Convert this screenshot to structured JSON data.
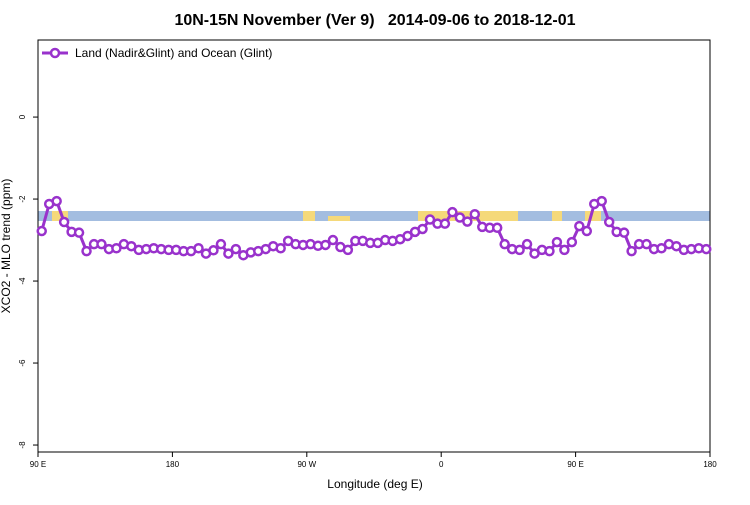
{
  "chart_data": {
    "type": "line",
    "title": "10N-15N November (Ver 9)   2014-09-06 to 2018-12-01",
    "xlabel": "Longitude (deg E)",
    "ylabel": "XCO2 - MLO trend (ppm)",
    "xlim": [
      90,
      540
    ],
    "ylim": [
      -8.17,
      1.88
    ],
    "xticks": [
      {
        "value": 90,
        "label": "90 E"
      },
      {
        "value": 180,
        "label": "180"
      },
      {
        "value": 270,
        "label": "90 W"
      },
      {
        "value": 360,
        "label": "0"
      },
      {
        "value": 450,
        "label": "90 E"
      },
      {
        "value": 540,
        "label": "180"
      }
    ],
    "yticks": [
      0,
      -2,
      -4,
      -6,
      -8
    ],
    "legend": "top-left",
    "x": [
      92.5,
      97.5,
      102.5,
      107.5,
      112.5,
      117.5,
      122.5,
      127.5,
      132.5,
      137.5,
      142.5,
      147.5,
      152.5,
      157.5,
      162.5,
      167.5,
      172.5,
      177.5,
      182.5,
      187.5,
      192.5,
      197.5,
      202.5,
      207.5,
      212.5,
      217.5,
      222.5,
      227.5,
      232.5,
      237.5,
      242.5,
      247.5,
      252.5,
      257.5,
      262.5,
      267.5,
      272.5,
      277.5,
      282.5,
      287.5,
      292.5,
      297.5,
      302.5,
      307.5,
      312.5,
      317.5,
      322.5,
      327.5,
      332.5,
      337.5,
      342.5,
      347.5,
      352.5,
      357.5,
      362.5,
      367.5,
      372.5,
      377.5,
      382.5,
      387.5,
      392.5,
      397.5,
      402.5,
      407.5,
      412.5,
      417.5,
      422.5,
      427.5,
      432.5,
      437.5,
      442.5,
      447.5,
      452.5,
      457.5,
      462.5,
      467.5,
      472.5,
      477.5,
      482.5,
      487.5,
      492.5,
      497.5,
      502.5,
      507.5,
      512.5,
      517.5,
      522.5,
      527.5,
      532.5,
      537.5
    ],
    "series": [
      {
        "name": "Land (Nadir&Glint) and Ocean (Glint)",
        "color": "#9932cc",
        "values": [
          -2.78,
          -2.12,
          -2.05,
          -2.56,
          -2.8,
          -2.82,
          -3.27,
          -3.1,
          -3.1,
          -3.22,
          -3.2,
          -3.1,
          -3.15,
          -3.24,
          -3.22,
          -3.2,
          -3.22,
          -3.24,
          -3.24,
          -3.27,
          -3.27,
          -3.2,
          -3.33,
          -3.25,
          -3.1,
          -3.33,
          -3.22,
          -3.37,
          -3.3,
          -3.27,
          -3.22,
          -3.15,
          -3.2,
          -3.02,
          -3.1,
          -3.12,
          -3.1,
          -3.14,
          -3.12,
          -3.0,
          -3.17,
          -3.24,
          -3.02,
          -3.02,
          -3.07,
          -3.07,
          -3.0,
          -3.02,
          -2.98,
          -2.9,
          -2.8,
          -2.73,
          -2.5,
          -2.6,
          -2.6,
          -2.32,
          -2.45,
          -2.55,
          -2.37,
          -2.68,
          -2.7,
          -2.7,
          -3.1,
          -3.22,
          -3.24,
          -3.1,
          -3.33,
          -3.24,
          -3.27,
          -3.05,
          -3.24,
          -3.05,
          -2.66,
          -2.78,
          -2.12,
          -2.05,
          -2.56,
          -2.8,
          -2.82,
          -3.27,
          -3.1,
          -3.1,
          -3.22,
          -3.2,
          -3.1,
          -3.15,
          -3.24,
          -3.22,
          -3.2,
          -3.22
        ]
      }
    ]
  }
}
